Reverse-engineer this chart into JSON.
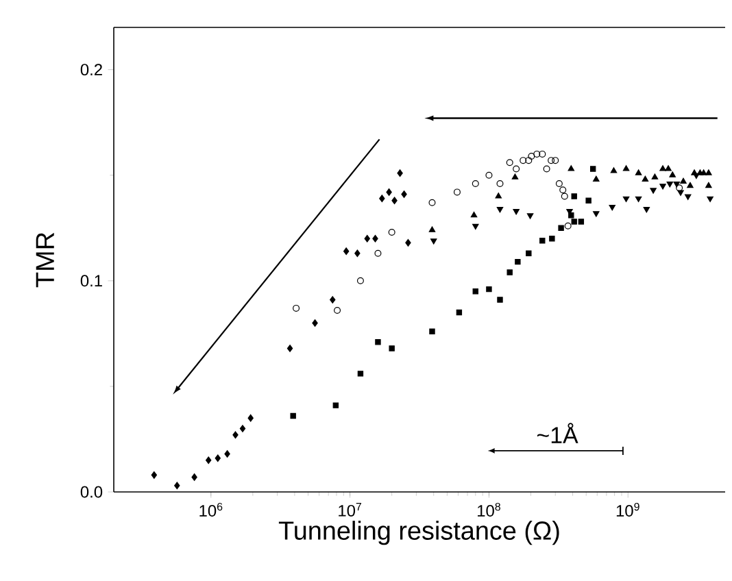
{
  "chart_data": {
    "type": "scatter",
    "xlabel": "Tunneling resistance (Ω)",
    "ylabel": "TMR",
    "log": "x",
    "xlim": [
      200000,
      5000000000
    ],
    "ylim": [
      0,
      0.22
    ],
    "xticks": [
      {
        "value": 1000000,
        "label": "10$^{6}$"
      },
      {
        "value": 10000000,
        "label": "10$^{7}$"
      },
      {
        "value": 100000000,
        "label": "10$^{8}$"
      },
      {
        "value": 1000000000,
        "label": "10$^{9}$"
      }
    ],
    "yticks": [
      {
        "value": 0,
        "label": "0.0"
      },
      {
        "value": 0.1,
        "label": "0.1"
      },
      {
        "value": 0.2,
        "label": "0.2"
      }
    ],
    "grid": false,
    "annotations": [
      "~1Å"
    ],
    "series": [
      {
        "color": "#000000",
        "marker": "diamond",
        "x": [
          390000,
          570000,
          760000,
          960000,
          1120000,
          1310000,
          1500000,
          1690000,
          1930000,
          3700000,
          5600000,
          7500000,
          9400000,
          11300000,
          13300000,
          15200000,
          17000000,
          19100000,
          20900000,
          22900000,
          24500000,
          26200000
        ],
        "values": [
          0.008,
          0.003,
          0.007,
          0.015,
          0.016,
          0.018,
          0.027,
          0.03,
          0.035,
          0.068,
          0.08,
          0.091,
          0.114,
          0.113,
          0.12,
          0.12,
          0.139,
          0.142,
          0.138,
          0.151,
          0.141,
          0.118
        ]
      },
      {
        "color": "#000000",
        "marker": "circle",
        "x": [
          4100000,
          8100000,
          11900000,
          15900000,
          20000000,
          39000000,
          59000000,
          80000000,
          100000000,
          120000000,
          141000000,
          157000000,
          176000000,
          193000000,
          202000000,
          221000000,
          242000000,
          260000000,
          280000000,
          300000000,
          320000000,
          340000000,
          350000000,
          370000000,
          2340000000
        ],
        "values": [
          0.087,
          0.086,
          0.1,
          0.113,
          0.123,
          0.137,
          0.142,
          0.146,
          0.15,
          0.146,
          0.156,
          0.153,
          0.157,
          0.157,
          0.159,
          0.16,
          0.16,
          0.153,
          0.157,
          0.157,
          0.146,
          0.143,
          0.14,
          0.126,
          0.144
        ]
      },
      {
        "color": "#000000",
        "marker": "triangle",
        "x": [
          39000000,
          78000000,
          117000000,
          154000000,
          390000000,
          590000000,
          790000000,
          970000000,
          1190000000,
          1330000000,
          1560000000,
          1780000000,
          1950000000,
          2090000000,
          2500000000,
          2800000000,
          3000000000,
          3300000000,
          3500000000,
          3800000000,
          3800000000
        ],
        "values": [
          0.124,
          0.131,
          0.14,
          0.149,
          0.153,
          0.148,
          0.152,
          0.153,
          0.151,
          0.148,
          0.149,
          0.153,
          0.153,
          0.15,
          0.147,
          0.145,
          0.151,
          0.151,
          0.151,
          0.151,
          0.145
        ]
      },
      {
        "color": "#000000",
        "marker": "triangle-down",
        "x": [
          40000000,
          80000000,
          120000000,
          157000000,
          198000000,
          380000000,
          590000000,
          770000000,
          970000000,
          1190000000,
          1360000000,
          1520000000,
          1780000000,
          2000000000,
          2240000000,
          2390000000,
          2700000000,
          3100000000,
          3900000000
        ],
        "values": [
          0.119,
          0.126,
          0.134,
          0.133,
          0.131,
          0.133,
          0.132,
          0.135,
          0.139,
          0.139,
          0.134,
          0.143,
          0.145,
          0.146,
          0.146,
          0.142,
          0.14,
          0.15,
          0.139
        ]
      },
      {
        "color": "#000000",
        "marker": "square",
        "x": [
          3900000,
          7900000,
          11900000,
          15900000,
          20000000,
          39000000,
          61000000,
          80000000,
          100000000,
          120000000,
          141000000,
          161000000,
          193000000,
          242000000,
          284000000,
          330000000,
          390000000,
          410000000,
          460000000,
          410000000,
          520000000,
          560000000
        ],
        "values": [
          0.036,
          0.041,
          0.056,
          0.071,
          0.068,
          0.076,
          0.085,
          0.095,
          0.096,
          0.091,
          0.104,
          0.109,
          0.113,
          0.119,
          0.12,
          0.125,
          0.131,
          0.128,
          0.128,
          0.14,
          0.138,
          0.153
        ]
      }
    ]
  }
}
